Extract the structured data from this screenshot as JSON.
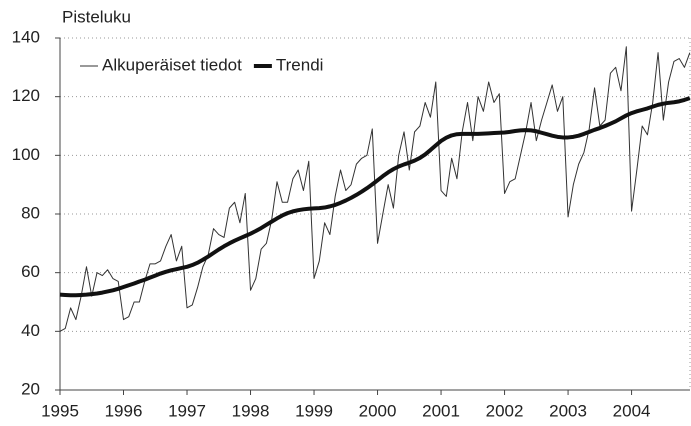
{
  "chart_data": {
    "type": "line",
    "y_label": "Pisteluku",
    "x": [
      1995.0,
      1995.083,
      1995.167,
      1995.25,
      1995.333,
      1995.417,
      1995.5,
      1995.583,
      1995.667,
      1995.75,
      1995.833,
      1995.917,
      1996.0,
      1996.083,
      1996.167,
      1996.25,
      1996.333,
      1996.417,
      1996.5,
      1996.583,
      1996.667,
      1996.75,
      1996.833,
      1996.917,
      1997.0,
      1997.083,
      1997.167,
      1997.25,
      1997.333,
      1997.417,
      1997.5,
      1997.583,
      1997.667,
      1997.75,
      1997.833,
      1997.917,
      1998.0,
      1998.083,
      1998.167,
      1998.25,
      1998.333,
      1998.417,
      1998.5,
      1998.583,
      1998.667,
      1998.75,
      1998.833,
      1998.917,
      1999.0,
      1999.083,
      1999.167,
      1999.25,
      1999.333,
      1999.417,
      1999.5,
      1999.583,
      1999.667,
      1999.75,
      1999.833,
      1999.917,
      2000.0,
      2000.083,
      2000.167,
      2000.25,
      2000.333,
      2000.417,
      2000.5,
      2000.583,
      2000.667,
      2000.75,
      2000.833,
      2000.917,
      2001.0,
      2001.083,
      2001.167,
      2001.25,
      2001.333,
      2001.417,
      2001.5,
      2001.583,
      2001.667,
      2001.75,
      2001.833,
      2001.917,
      2002.0,
      2002.083,
      2002.167,
      2002.25,
      2002.333,
      2002.417,
      2002.5,
      2002.583,
      2002.667,
      2002.75,
      2002.833,
      2002.917,
      2003.0,
      2003.083,
      2003.167,
      2003.25,
      2003.333,
      2003.417,
      2003.5,
      2003.583,
      2003.667,
      2003.75,
      2003.833,
      2003.917,
      2004.0,
      2004.083,
      2004.167,
      2004.25,
      2004.333,
      2004.417,
      2004.5,
      2004.583,
      2004.667,
      2004.75,
      2004.833,
      2004.917
    ],
    "series": [
      {
        "name": "Alkuperäiset tiedot",
        "color": "#333333",
        "width": 1,
        "values": [
          40,
          41,
          48,
          44,
          52,
          62,
          52,
          60,
          59,
          61,
          58,
          57,
          44,
          45,
          50,
          50,
          57,
          63,
          63,
          64,
          69,
          73,
          64,
          69,
          48,
          49,
          55,
          62,
          66,
          75,
          73,
          72,
          82,
          84,
          77,
          87,
          54,
          58,
          68,
          70,
          78,
          91,
          84,
          84,
          92,
          95,
          88,
          98,
          58,
          64,
          77,
          73,
          86,
          95,
          88,
          90,
          97,
          99,
          100,
          109,
          70,
          80,
          90,
          82,
          100,
          108,
          95,
          108,
          110,
          118,
          113,
          125,
          88,
          86,
          99,
          92,
          108,
          118,
          105,
          120,
          115,
          125,
          118,
          121,
          87,
          91,
          92,
          100,
          108,
          118,
          105,
          112,
          118,
          124,
          115,
          120,
          79,
          90,
          97,
          101,
          109,
          123,
          110,
          112,
          128,
          130,
          122,
          137,
          81,
          95,
          110,
          107,
          118,
          135,
          112,
          125,
          132,
          133,
          130,
          135
        ]
      },
      {
        "name": "Trendi",
        "color": "#111111",
        "width": 4,
        "values": [
          52.5,
          52.4,
          52.3,
          52.3,
          52.4,
          52.5,
          52.7,
          52.9,
          53.2,
          53.6,
          54.0,
          54.5,
          55.1,
          55.7,
          56.3,
          57.0,
          57.6,
          58.3,
          59.0,
          59.7,
          60.3,
          60.8,
          61.2,
          61.6,
          62.0,
          62.6,
          63.4,
          64.4,
          65.5,
          66.7,
          67.9,
          69.0,
          70.0,
          70.9,
          71.7,
          72.5,
          73.3,
          74.2,
          75.2,
          76.3,
          77.4,
          78.5,
          79.5,
          80.3,
          80.9,
          81.3,
          81.6,
          81.8,
          81.9,
          82.0,
          82.2,
          82.6,
          83.1,
          83.8,
          84.6,
          85.5,
          86.5,
          87.6,
          88.8,
          90.1,
          91.5,
          92.9,
          94.2,
          95.3,
          96.2,
          96.9,
          97.5,
          98.2,
          99.1,
          100.3,
          101.8,
          103.4,
          104.9,
          106.0,
          106.8,
          107.2,
          107.3,
          107.3,
          107.3,
          107.3,
          107.4,
          107.5,
          107.6,
          107.7,
          107.8,
          108.0,
          108.3,
          108.5,
          108.6,
          108.5,
          108.2,
          107.7,
          107.2,
          106.7,
          106.3,
          106.1,
          106.1,
          106.3,
          106.7,
          107.3,
          108.0,
          108.7,
          109.3,
          110.0,
          110.8,
          111.6,
          112.6,
          113.6,
          114.4,
          115.0,
          115.5,
          116.0,
          116.6,
          117.2,
          117.6,
          117.9,
          118.1,
          118.4,
          118.9,
          119.5
        ]
      }
    ],
    "xlim": [
      1995,
      2004.92
    ],
    "xticks": [
      1995,
      1996,
      1997,
      1998,
      1999,
      2000,
      2001,
      2002,
      2003,
      2004
    ],
    "ylim": [
      20,
      140
    ],
    "yticks": [
      20,
      40,
      60,
      80,
      100,
      120,
      140
    ],
    "grid": true,
    "legend": "upper left"
  }
}
